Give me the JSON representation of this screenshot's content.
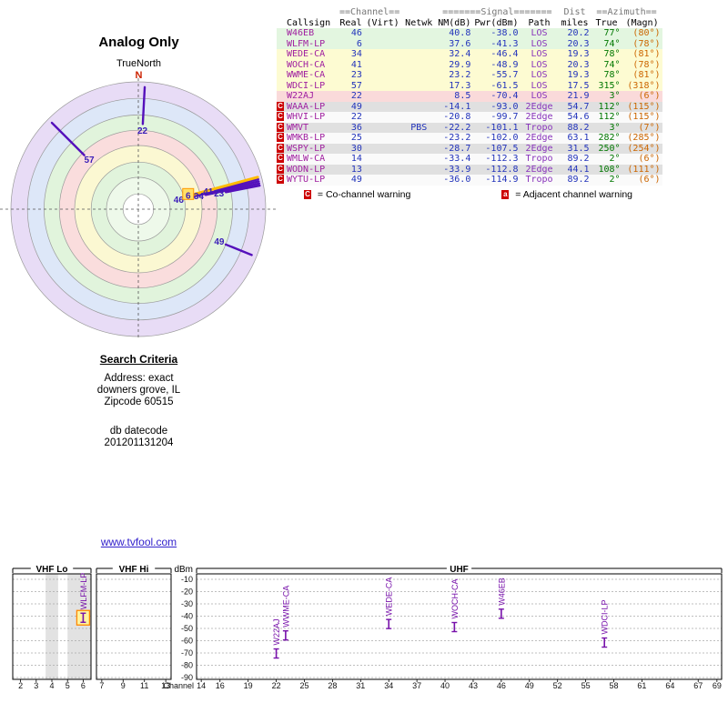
{
  "page": {
    "link": "www.tvfool.com"
  },
  "search_criteria": {
    "heading": "Search Criteria",
    "lines": [
      "Address: exact",
      "downers grove, IL",
      "Zipcode 60515"
    ],
    "datecode_label": "db datecode",
    "datecode": "201201131204"
  },
  "table": {
    "group_headers": {
      "channel": "==Channel==",
      "signal": "=======Signal=======",
      "dist": "Dist",
      "azimuth": "==Azimuth=="
    },
    "columns": [
      "Callsign",
      "Real",
      "(Virt)",
      "Netwk",
      "NM(dB)",
      "Pwr(dBm)",
      "Path",
      "miles",
      "True",
      "(Magn)"
    ],
    "rows": [
      {
        "warn": "",
        "callsign": "W46EB",
        "real": "46",
        "virt": "",
        "netwk": "",
        "nm": "40.8",
        "pwr": "-38.0",
        "path": "LOS",
        "miles": "20.2",
        "true": "77°",
        "magn": "(80°)",
        "bg": "green"
      },
      {
        "warn": "",
        "callsign": "WLFM-LP",
        "real": "6",
        "virt": "",
        "netwk": "",
        "nm": "37.6",
        "pwr": "-41.3",
        "path": "LOS",
        "miles": "20.3",
        "true": "74°",
        "magn": "(78°)",
        "bg": "green"
      },
      {
        "warn": "",
        "callsign": "WEDE-CA",
        "real": "34",
        "virt": "",
        "netwk": "",
        "nm": "32.4",
        "pwr": "-46.4",
        "path": "LOS",
        "miles": "19.3",
        "true": "78°",
        "magn": "(81°)",
        "bg": "yellow"
      },
      {
        "warn": "",
        "callsign": "WOCH-CA",
        "real": "41",
        "virt": "",
        "netwk": "",
        "nm": "29.9",
        "pwr": "-48.9",
        "path": "LOS",
        "miles": "20.3",
        "true": "74°",
        "magn": "(78°)",
        "bg": "yellow"
      },
      {
        "warn": "",
        "callsign": "WWME-CA",
        "real": "23",
        "virt": "",
        "netwk": "",
        "nm": "23.2",
        "pwr": "-55.7",
        "path": "LOS",
        "miles": "19.3",
        "true": "78°",
        "magn": "(81°)",
        "bg": "yellow"
      },
      {
        "warn": "",
        "callsign": "WDCI-LP",
        "real": "57",
        "virt": "",
        "netwk": "",
        "nm": "17.3",
        "pwr": "-61.5",
        "path": "LOS",
        "miles": "17.5",
        "true": "315°",
        "magn": "(318°)",
        "bg": "yellow"
      },
      {
        "warn": "",
        "callsign": "W22AJ",
        "real": "22",
        "virt": "",
        "netwk": "",
        "nm": "8.5",
        "pwr": "-70.4",
        "path": "LOS",
        "miles": "21.9",
        "true": "3°",
        "magn": "(6°)",
        "bg": "pink"
      },
      {
        "warn": "C",
        "callsign": "WAAA-LP",
        "real": "49",
        "virt": "",
        "netwk": "",
        "nm": "-14.1",
        "pwr": "-93.0",
        "path": "2Edge",
        "miles": "54.7",
        "true": "112°",
        "magn": "(115°)",
        "bg": "gray"
      },
      {
        "warn": "C",
        "callsign": "WHVI-LP",
        "real": "22",
        "virt": "",
        "netwk": "",
        "nm": "-20.8",
        "pwr": "-99.7",
        "path": "2Edge",
        "miles": "54.6",
        "true": "112°",
        "magn": "(115°)",
        "bg": "white"
      },
      {
        "warn": "C",
        "callsign": "WMVT",
        "real": "36",
        "virt": "",
        "netwk": "PBS",
        "nm": "-22.2",
        "pwr": "-101.1",
        "path": "Tropo",
        "miles": "88.2",
        "true": "3°",
        "magn": "(7°)",
        "bg": "gray"
      },
      {
        "warn": "C",
        "callsign": "WMKB-LP",
        "real": "25",
        "virt": "",
        "netwk": "",
        "nm": "-23.2",
        "pwr": "-102.0",
        "path": "2Edge",
        "miles": "63.1",
        "true": "282°",
        "magn": "(285°)",
        "bg": "white"
      },
      {
        "warn": "C",
        "callsign": "WSPY-LP",
        "real": "30",
        "virt": "",
        "netwk": "",
        "nm": "-28.7",
        "pwr": "-107.5",
        "path": "2Edge",
        "miles": "31.5",
        "true": "250°",
        "magn": "(254°)",
        "bg": "gray"
      },
      {
        "warn": "C",
        "callsign": "WMLW-CA",
        "real": "14",
        "virt": "",
        "netwk": "",
        "nm": "-33.4",
        "pwr": "-112.3",
        "path": "Tropo",
        "miles": "89.2",
        "true": "2°",
        "magn": "(6°)",
        "bg": "white"
      },
      {
        "warn": "C",
        "callsign": "WODN-LP",
        "real": "13",
        "virt": "",
        "netwk": "",
        "nm": "-33.9",
        "pwr": "-112.8",
        "path": "2Edge",
        "miles": "44.1",
        "true": "108°",
        "magn": "(111°)",
        "bg": "gray"
      },
      {
        "warn": "C",
        "callsign": "WYTU-LP",
        "real": "49",
        "virt": "",
        "netwk": "",
        "nm": "-36.0",
        "pwr": "-114.9",
        "path": "Tropo",
        "miles": "89.2",
        "true": "2°",
        "magn": "(6°)",
        "bg": "white"
      }
    ],
    "legend": [
      {
        "badge": "C",
        "text": "= Co-channel warning"
      },
      {
        "badge": "a",
        "text": "= Adjacent channel warning"
      }
    ]
  },
  "chart_data": [
    {
      "type": "radar",
      "title": "Analog Only",
      "orientation": "TrueNorth",
      "north_label": "N",
      "rings": [
        {
          "r": 1.0,
          "color": "#e8dcf6"
        },
        {
          "r": 0.87,
          "color": "#dde7f8"
        },
        {
          "r": 0.74,
          "color": "#e1f4dc"
        },
        {
          "r": 0.62,
          "color": "#fadddd"
        },
        {
          "r": 0.5,
          "color": "#fbf8d2"
        },
        {
          "r": 0.37,
          "color": "#e1f4dc"
        },
        {
          "r": 0.25,
          "color": "#eef9ea"
        },
        {
          "r": 0.12,
          "color": "#ffffff"
        }
      ],
      "spokes": [
        {
          "channel": "22",
          "callsign": "W22AJ",
          "azimuth": 3,
          "r_outer": 0.96,
          "r_inner": 0.67
        },
        {
          "channel": "57",
          "callsign": "WDCI-LP",
          "azimuth": 315,
          "r_outer": 0.96,
          "r_inner": 0.6
        },
        {
          "channel": "46",
          "callsign": "W46EB",
          "azimuth": 77,
          "r_outer": 0.97,
          "r_inner": 0.38
        },
        {
          "channel": "6",
          "callsign": "WLFM-LP",
          "azimuth": 75,
          "r_outer": 0.97,
          "r_inner": 0.46,
          "highlight": true
        },
        {
          "channel": "34",
          "callsign": "WEDE-CA",
          "azimuth": 78,
          "r_outer": 0.97,
          "r_inner": 0.54
        },
        {
          "channel": "41",
          "callsign": "WOCH-CA",
          "azimuth": 76,
          "r_outer": 0.97,
          "r_inner": 0.62
        },
        {
          "channel": "23",
          "callsign": "WWME-CA",
          "azimuth": 79,
          "r_outer": 0.97,
          "r_inner": 0.7
        },
        {
          "channel": "49",
          "callsign": "WAAA-LP",
          "azimuth": 112,
          "r_outer": 0.96,
          "r_inner": 0.74
        }
      ]
    },
    {
      "type": "scatter",
      "ylabel": "dBm",
      "xlabel": "Channel",
      "ylim": [
        -90,
        -10
      ],
      "panels": [
        {
          "label": "VHF Lo",
          "chan_min": 2,
          "chan_max": 6,
          "ticks": [
            2,
            3,
            4,
            5,
            6
          ],
          "shaded": [
            [
              3.6,
              4.4
            ],
            [
              5.0,
              6.5
            ]
          ]
        },
        {
          "label": "VHF Hi",
          "chan_min": 7,
          "chan_max": 13,
          "ticks": [
            7,
            9,
            11,
            13
          ],
          "shaded": []
        },
        {
          "label": "UHF",
          "chan_min": 14,
          "chan_max": 69,
          "ticks": [
            14,
            16,
            19,
            22,
            25,
            28,
            31,
            34,
            37,
            40,
            43,
            46,
            49,
            52,
            55,
            58,
            61,
            64,
            67,
            69
          ],
          "shaded": []
        }
      ],
      "points": [
        {
          "label": "WLFM-LP",
          "panel": "VHF Lo",
          "channel": 6,
          "dbm": -41.3,
          "highlight": true
        },
        {
          "label": "W22AJ",
          "panel": "UHF",
          "channel": 22,
          "dbm": -70.4
        },
        {
          "label": "WWME-CA",
          "panel": "UHF",
          "channel": 23,
          "dbm": -55.7
        },
        {
          "label": "WEDE-CA",
          "panel": "UHF",
          "channel": 34,
          "dbm": -46.4
        },
        {
          "label": "WOCH-CA",
          "panel": "UHF",
          "channel": 41,
          "dbm": -48.9
        },
        {
          "label": "W46EB",
          "panel": "UHF",
          "channel": 46,
          "dbm": -38.0
        },
        {
          "label": "WDCI-LP",
          "panel": "UHF",
          "channel": 57,
          "dbm": -61.5
        }
      ]
    }
  ]
}
